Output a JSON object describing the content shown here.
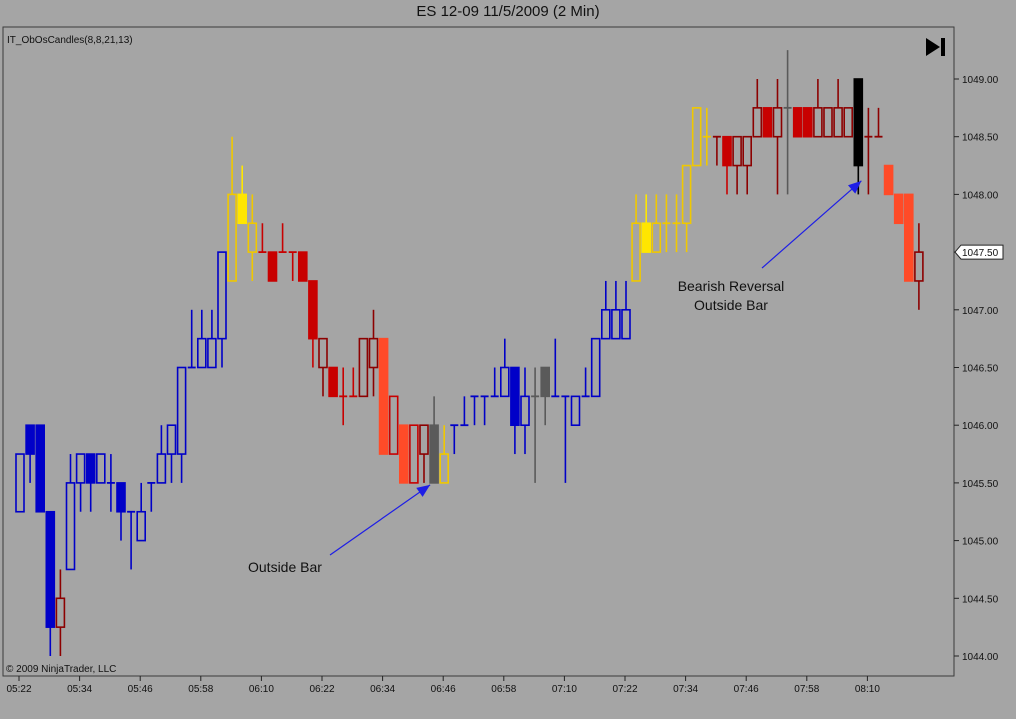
{
  "window": {
    "title": "ES 12-09  11/5/2009 (2 Min)"
  },
  "indicator_label": "IT_ObOsCandles(8,8,21,13)",
  "copyright": "© 2009 NinjaTrader, LLC",
  "current_price_label": "1047.50",
  "controls": {
    "play_end_icon": "skip-to-end-icon"
  },
  "colors": {
    "background": "#a5a5a5",
    "blue": "#0000c8",
    "red": "#c80000",
    "darkred": "#8c0000",
    "yellow": "#ffe600",
    "gold": "#f0c800",
    "orange_red": "#ff4b28",
    "gray": "#5a5a5a",
    "black": "#000000",
    "annotation_arrow": "#1e1ee6"
  },
  "chart_data": {
    "type": "candlestick",
    "title": "ES 12-09  11/5/2009 (2 Min)",
    "ylim": [
      1043.9,
      1049.2
    ],
    "y_ticks": [
      "1044.00",
      "1044.50",
      "1045.00",
      "1045.50",
      "1046.00",
      "1046.50",
      "1047.00",
      "1047.50",
      "1048.00",
      "1048.50",
      "1049.00"
    ],
    "x_ticks": [
      "05:22",
      "05:34",
      "05:46",
      "05:58",
      "06:10",
      "06:22",
      "06:34",
      "06:46",
      "06:58",
      "07:10",
      "07:22",
      "07:34",
      "07:46",
      "07:58",
      "08:10"
    ],
    "start_time": "05:22",
    "interval_minutes": 2,
    "candles": [
      {
        "o": 1045.25,
        "h": 1045.75,
        "l": 1045.25,
        "c": 1045.75,
        "color": "blue",
        "fill": false
      },
      {
        "o": 1045.75,
        "h": 1046.0,
        "l": 1045.5,
        "c": 1046.0,
        "color": "blue",
        "fill": true
      },
      {
        "o": 1046.0,
        "h": 1046.0,
        "l": 1045.25,
        "c": 1045.25,
        "color": "blue",
        "fill": true
      },
      {
        "o": 1045.25,
        "h": 1045.25,
        "l": 1044.0,
        "c": 1044.25,
        "color": "blue",
        "fill": true
      },
      {
        "o": 1044.25,
        "h": 1044.75,
        "l": 1044.0,
        "c": 1044.5,
        "color": "darkred",
        "fill": false
      },
      {
        "o": 1044.75,
        "h": 1045.75,
        "l": 1044.75,
        "c": 1045.5,
        "color": "blue",
        "fill": false
      },
      {
        "o": 1045.5,
        "h": 1045.75,
        "l": 1045.25,
        "c": 1045.75,
        "color": "blue",
        "fill": false
      },
      {
        "o": 1045.75,
        "h": 1045.75,
        "l": 1045.25,
        "c": 1045.5,
        "color": "blue",
        "fill": true
      },
      {
        "o": 1045.5,
        "h": 1045.75,
        "l": 1045.5,
        "c": 1045.75,
        "color": "blue",
        "fill": false
      },
      {
        "o": 1045.5,
        "h": 1045.75,
        "l": 1045.25,
        "c": 1045.5,
        "color": "blue",
        "fill": false
      },
      {
        "o": 1045.5,
        "h": 1045.5,
        "l": 1045.0,
        "c": 1045.25,
        "color": "blue",
        "fill": true
      },
      {
        "o": 1045.25,
        "h": 1045.25,
        "l": 1044.75,
        "c": 1045.25,
        "color": "blue",
        "fill": false
      },
      {
        "o": 1045.0,
        "h": 1045.5,
        "l": 1045.0,
        "c": 1045.25,
        "color": "blue",
        "fill": false
      },
      {
        "o": 1045.5,
        "h": 1045.5,
        "l": 1045.25,
        "c": 1045.5,
        "color": "blue",
        "fill": false
      },
      {
        "o": 1045.5,
        "h": 1046.0,
        "l": 1045.5,
        "c": 1045.75,
        "color": "blue",
        "fill": false
      },
      {
        "o": 1045.75,
        "h": 1046.0,
        "l": 1045.5,
        "c": 1046.0,
        "color": "blue",
        "fill": false
      },
      {
        "o": 1045.75,
        "h": 1046.5,
        "l": 1045.5,
        "c": 1046.5,
        "color": "blue",
        "fill": false
      },
      {
        "o": 1046.5,
        "h": 1047.0,
        "l": 1046.5,
        "c": 1046.5,
        "color": "blue",
        "fill": false
      },
      {
        "o": 1046.5,
        "h": 1047.0,
        "l": 1046.5,
        "c": 1046.75,
        "color": "blue",
        "fill": false
      },
      {
        "o": 1046.5,
        "h": 1047.0,
        "l": 1046.5,
        "c": 1046.75,
        "color": "blue",
        "fill": false
      },
      {
        "o": 1046.75,
        "h": 1047.5,
        "l": 1046.5,
        "c": 1047.5,
        "color": "blue",
        "fill": false
      },
      {
        "o": 1047.25,
        "h": 1048.5,
        "l": 1047.25,
        "c": 1048.0,
        "color": "gold",
        "fill": false
      },
      {
        "o": 1048.0,
        "h": 1048.25,
        "l": 1047.75,
        "c": 1047.75,
        "color": "yellow",
        "fill": true
      },
      {
        "o": 1047.75,
        "h": 1048.0,
        "l": 1047.25,
        "c": 1047.5,
        "color": "gold",
        "fill": false
      },
      {
        "o": 1047.5,
        "h": 1047.75,
        "l": 1047.5,
        "c": 1047.5,
        "color": "red",
        "fill": false
      },
      {
        "o": 1047.5,
        "h": 1047.5,
        "l": 1047.25,
        "c": 1047.25,
        "color": "red",
        "fill": true
      },
      {
        "o": 1047.5,
        "h": 1047.75,
        "l": 1047.5,
        "c": 1047.5,
        "color": "red",
        "fill": false
      },
      {
        "o": 1047.5,
        "h": 1047.5,
        "l": 1047.25,
        "c": 1047.5,
        "color": "red",
        "fill": false
      },
      {
        "o": 1047.5,
        "h": 1047.5,
        "l": 1047.25,
        "c": 1047.25,
        "color": "red",
        "fill": true
      },
      {
        "o": 1047.25,
        "h": 1047.25,
        "l": 1046.5,
        "c": 1046.75,
        "color": "red",
        "fill": true
      },
      {
        "o": 1046.75,
        "h": 1046.75,
        "l": 1046.25,
        "c": 1046.5,
        "color": "darkred",
        "fill": false
      },
      {
        "o": 1046.5,
        "h": 1046.5,
        "l": 1046.25,
        "c": 1046.25,
        "color": "red",
        "fill": true
      },
      {
        "o": 1046.25,
        "h": 1046.5,
        "l": 1046.0,
        "c": 1046.25,
        "color": "red",
        "fill": false
      },
      {
        "o": 1046.25,
        "h": 1046.5,
        "l": 1046.25,
        "c": 1046.25,
        "color": "red",
        "fill": false
      },
      {
        "o": 1046.25,
        "h": 1046.75,
        "l": 1046.25,
        "c": 1046.75,
        "color": "darkred",
        "fill": false
      },
      {
        "o": 1046.5,
        "h": 1047.0,
        "l": 1046.25,
        "c": 1046.75,
        "color": "darkred",
        "fill": false
      },
      {
        "o": 1046.75,
        "h": 1046.75,
        "l": 1045.75,
        "c": 1045.75,
        "color": "orange_red",
        "fill": true
      },
      {
        "o": 1046.25,
        "h": 1046.25,
        "l": 1045.75,
        "c": 1045.75,
        "color": "red",
        "fill": false
      },
      {
        "o": 1046.0,
        "h": 1046.0,
        "l": 1045.5,
        "c": 1045.5,
        "color": "orange_red",
        "fill": true
      },
      {
        "o": 1046.0,
        "h": 1046.0,
        "l": 1045.5,
        "c": 1045.5,
        "color": "red",
        "fill": false
      },
      {
        "o": 1046.0,
        "h": 1046.0,
        "l": 1045.5,
        "c": 1045.75,
        "color": "darkred",
        "fill": false
      },
      {
        "o": 1046.0,
        "h": 1046.25,
        "l": 1045.5,
        "c": 1045.5,
        "color": "gray",
        "fill": true
      },
      {
        "o": 1045.5,
        "h": 1046.0,
        "l": 1045.5,
        "c": 1045.75,
        "color": "gold",
        "fill": false
      },
      {
        "o": 1046.0,
        "h": 1046.0,
        "l": 1045.75,
        "c": 1046.0,
        "color": "blue",
        "fill": false
      },
      {
        "o": 1046.0,
        "h": 1046.25,
        "l": 1046.0,
        "c": 1046.0,
        "color": "blue",
        "fill": false
      },
      {
        "o": 1046.25,
        "h": 1046.25,
        "l": 1046.0,
        "c": 1046.25,
        "color": "blue",
        "fill": false
      },
      {
        "o": 1046.25,
        "h": 1046.25,
        "l": 1046.0,
        "c": 1046.25,
        "color": "blue",
        "fill": false
      },
      {
        "o": 1046.25,
        "h": 1046.5,
        "l": 1046.25,
        "c": 1046.25,
        "color": "blue",
        "fill": false
      },
      {
        "o": 1046.25,
        "h": 1046.75,
        "l": 1046.25,
        "c": 1046.5,
        "color": "blue",
        "fill": false
      },
      {
        "o": 1046.5,
        "h": 1046.5,
        "l": 1045.75,
        "c": 1046.0,
        "color": "blue",
        "fill": true
      },
      {
        "o": 1046.0,
        "h": 1046.5,
        "l": 1045.75,
        "c": 1046.25,
        "color": "blue",
        "fill": false
      },
      {
        "o": 1046.25,
        "h": 1046.5,
        "l": 1045.5,
        "c": 1046.25,
        "color": "gray",
        "fill": false
      },
      {
        "o": 1046.5,
        "h": 1046.5,
        "l": 1046.0,
        "c": 1046.25,
        "color": "gray",
        "fill": true
      },
      {
        "o": 1046.25,
        "h": 1046.75,
        "l": 1046.25,
        "c": 1046.25,
        "color": "blue",
        "fill": false
      },
      {
        "o": 1046.25,
        "h": 1046.25,
        "l": 1045.5,
        "c": 1046.25,
        "color": "blue",
        "fill": false
      },
      {
        "o": 1046.25,
        "h": 1046.25,
        "l": 1046.0,
        "c": 1046.0,
        "color": "blue",
        "fill": false
      },
      {
        "o": 1046.25,
        "h": 1046.5,
        "l": 1046.25,
        "c": 1046.25,
        "color": "blue",
        "fill": false
      },
      {
        "o": 1046.25,
        "h": 1046.75,
        "l": 1046.25,
        "c": 1046.75,
        "color": "blue",
        "fill": false
      },
      {
        "o": 1046.75,
        "h": 1047.25,
        "l": 1046.75,
        "c": 1047.0,
        "color": "blue",
        "fill": false
      },
      {
        "o": 1046.75,
        "h": 1047.25,
        "l": 1046.75,
        "c": 1047.0,
        "color": "blue",
        "fill": false
      },
      {
        "o": 1046.75,
        "h": 1047.25,
        "l": 1046.75,
        "c": 1047.0,
        "color": "blue",
        "fill": false
      },
      {
        "o": 1047.25,
        "h": 1048.0,
        "l": 1047.25,
        "c": 1047.75,
        "color": "gold",
        "fill": false
      },
      {
        "o": 1047.75,
        "h": 1048.0,
        "l": 1047.5,
        "c": 1047.5,
        "color": "yellow",
        "fill": true
      },
      {
        "o": 1047.5,
        "h": 1048.0,
        "l": 1047.5,
        "c": 1047.75,
        "color": "gold",
        "fill": false
      },
      {
        "o": 1047.75,
        "h": 1048.0,
        "l": 1047.5,
        "c": 1047.75,
        "color": "gold",
        "fill": false
      },
      {
        "o": 1047.75,
        "h": 1048.0,
        "l": 1047.5,
        "c": 1047.75,
        "color": "gold",
        "fill": false
      },
      {
        "o": 1047.75,
        "h": 1048.25,
        "l": 1047.5,
        "c": 1048.25,
        "color": "gold",
        "fill": false
      },
      {
        "o": 1048.25,
        "h": 1048.75,
        "l": 1048.25,
        "c": 1048.75,
        "color": "gold",
        "fill": false
      },
      {
        "o": 1048.5,
        "h": 1048.75,
        "l": 1048.25,
        "c": 1048.5,
        "color": "gold",
        "fill": false
      },
      {
        "o": 1048.5,
        "h": 1048.5,
        "l": 1048.25,
        "c": 1048.5,
        "color": "darkred",
        "fill": false
      },
      {
        "o": 1048.5,
        "h": 1048.5,
        "l": 1048.0,
        "c": 1048.25,
        "color": "red",
        "fill": true
      },
      {
        "o": 1048.5,
        "h": 1048.5,
        "l": 1048.0,
        "c": 1048.25,
        "color": "darkred",
        "fill": false
      },
      {
        "o": 1048.25,
        "h": 1048.5,
        "l": 1048.0,
        "c": 1048.5,
        "color": "darkred",
        "fill": false
      },
      {
        "o": 1048.5,
        "h": 1049.0,
        "l": 1048.5,
        "c": 1048.75,
        "color": "darkred",
        "fill": false
      },
      {
        "o": 1048.75,
        "h": 1048.75,
        "l": 1048.5,
        "c": 1048.5,
        "color": "red",
        "fill": true
      },
      {
        "o": 1048.5,
        "h": 1049.0,
        "l": 1048.0,
        "c": 1048.75,
        "color": "darkred",
        "fill": false
      },
      {
        "o": 1048.75,
        "h": 1049.25,
        "l": 1048.0,
        "c": 1048.75,
        "color": "gray",
        "fill": false
      },
      {
        "o": 1048.75,
        "h": 1048.75,
        "l": 1048.5,
        "c": 1048.5,
        "color": "red",
        "fill": true
      },
      {
        "o": 1048.75,
        "h": 1048.75,
        "l": 1048.5,
        "c": 1048.5,
        "color": "red",
        "fill": true
      },
      {
        "o": 1048.75,
        "h": 1049.0,
        "l": 1048.5,
        "c": 1048.5,
        "color": "darkred",
        "fill": false
      },
      {
        "o": 1048.5,
        "h": 1048.75,
        "l": 1048.5,
        "c": 1048.75,
        "color": "darkred",
        "fill": false
      },
      {
        "o": 1048.75,
        "h": 1049.0,
        "l": 1048.5,
        "c": 1048.5,
        "color": "darkred",
        "fill": false
      },
      {
        "o": 1048.5,
        "h": 1048.75,
        "l": 1048.5,
        "c": 1048.75,
        "color": "darkred",
        "fill": false
      },
      {
        "o": 1049.0,
        "h": 1049.0,
        "l": 1048.0,
        "c": 1048.25,
        "color": "black",
        "fill": true
      },
      {
        "o": 1048.5,
        "h": 1048.75,
        "l": 1048.0,
        "c": 1048.5,
        "color": "darkred",
        "fill": false
      },
      {
        "o": 1048.5,
        "h": 1048.75,
        "l": 1048.5,
        "c": 1048.5,
        "color": "darkred",
        "fill": false
      },
      {
        "o": 1048.25,
        "h": 1048.25,
        "l": 1048.0,
        "c": 1048.0,
        "color": "orange_red",
        "fill": true
      },
      {
        "o": 1048.0,
        "h": 1048.0,
        "l": 1047.75,
        "c": 1047.75,
        "color": "orange_red",
        "fill": true
      },
      {
        "o": 1048.0,
        "h": 1048.0,
        "l": 1047.25,
        "c": 1047.25,
        "color": "orange_red",
        "fill": true
      },
      {
        "o": 1047.25,
        "h": 1047.75,
        "l": 1047.0,
        "c": 1047.5,
        "color": "darkred",
        "fill": false
      }
    ],
    "annotations": [
      {
        "text": "Outside Bar",
        "target_bar": 41,
        "target_price": 1045.5
      },
      {
        "text_lines": [
          "Bearish Reversal",
          "Outside Bar"
        ],
        "target_bar": 84,
        "target_price": 1048.1
      }
    ]
  }
}
